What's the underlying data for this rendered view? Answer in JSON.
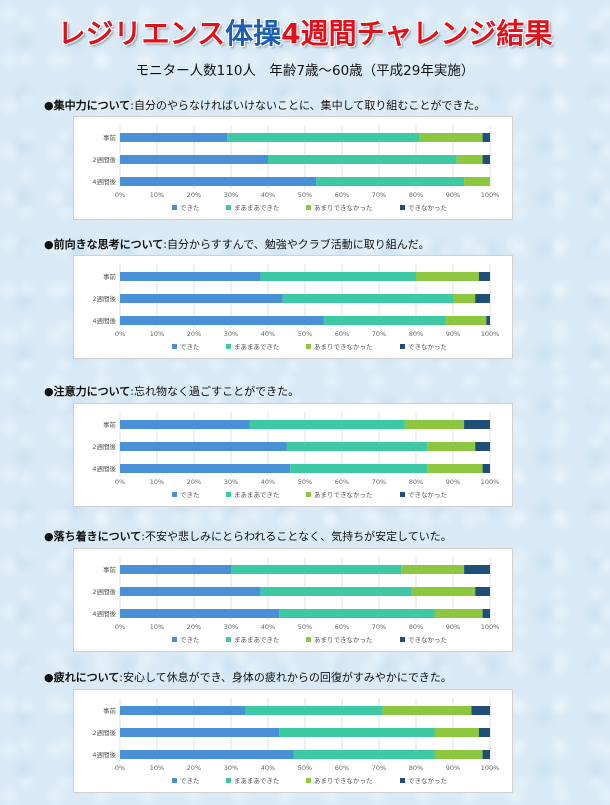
{
  "header": {
    "title_part1": "レジリエンス",
    "title_part2": "体操",
    "title_part3": "4週間チャレンジ結果",
    "subtitle": "モニター人数110人　年齢7歳～60歳（平成29年実施）"
  },
  "sections": [
    {
      "bullet": "●",
      "key": "集中力について",
      "desc": ":自分のやらなければいけないことに、集中して取り組むことができた。"
    },
    {
      "bullet": "●",
      "key": "前向きな思考について",
      "desc": ":自分からすすんで、勉強やクラブ活動に取り組んだ。"
    },
    {
      "bullet": "●",
      "key": "注意力について",
      "desc": ":忘れ物なく過ごすことができた。"
    },
    {
      "bullet": "●",
      "key": "落ち着きについて",
      "desc": ":不安や悲しみにとらわれることなく、気持ちが安定していた。"
    },
    {
      "bullet": "●",
      "key": "疲れについて",
      "desc": ":安心して休息ができ、身体の疲れからの回復がすみやかにできた。"
    }
  ],
  "chart_data": [
    {
      "type": "bar",
      "orientation": "horizontal",
      "stacked": true,
      "categories": [
        "事前",
        "2週間後",
        "4週間後"
      ],
      "series": [
        {
          "name": "できた",
          "values": [
            29,
            40,
            53
          ]
        },
        {
          "name": "まあまあできた",
          "values": [
            52,
            51,
            40
          ]
        },
        {
          "name": "あまりできなかった",
          "values": [
            17,
            7,
            7
          ]
        },
        {
          "name": "できなかった",
          "values": [
            2,
            2,
            0
          ]
        }
      ],
      "xlim": [
        0,
        100
      ],
      "ticks": [
        "0%",
        "10%",
        "20%",
        "30%",
        "40%",
        "50%",
        "60%",
        "70%",
        "80%",
        "90%",
        "100%"
      ],
      "legend": "bottom"
    },
    {
      "type": "bar",
      "orientation": "horizontal",
      "stacked": true,
      "categories": [
        "事前",
        "2週間後",
        "4週間後"
      ],
      "series": [
        {
          "name": "できた",
          "values": [
            38,
            44,
            55
          ]
        },
        {
          "name": "まあまあできた",
          "values": [
            42,
            46,
            33
          ]
        },
        {
          "name": "あまりできなかった",
          "values": [
            17,
            6,
            11
          ]
        },
        {
          "name": "できなかった",
          "values": [
            3,
            4,
            1
          ]
        }
      ],
      "xlim": [
        0,
        100
      ],
      "ticks": [
        "0%",
        "10%",
        "20%",
        "30%",
        "40%",
        "50%",
        "60%",
        "70%",
        "80%",
        "90%",
        "100%"
      ],
      "legend": "bottom"
    },
    {
      "type": "bar",
      "orientation": "horizontal",
      "stacked": true,
      "categories": [
        "事前",
        "2週間後",
        "4週間後"
      ],
      "series": [
        {
          "name": "できた",
          "values": [
            35,
            45,
            46
          ]
        },
        {
          "name": "まあまあできた",
          "values": [
            42,
            38,
            37
          ]
        },
        {
          "name": "あまりできなかった",
          "values": [
            16,
            13,
            15
          ]
        },
        {
          "name": "できなかった",
          "values": [
            7,
            4,
            2
          ]
        }
      ],
      "xlim": [
        0,
        100
      ],
      "ticks": [
        "0%",
        "10%",
        "20%",
        "30%",
        "40%",
        "50%",
        "60%",
        "70%",
        "80%",
        "90%",
        "100%"
      ],
      "legend": "bottom"
    },
    {
      "type": "bar",
      "orientation": "horizontal",
      "stacked": true,
      "categories": [
        "事前",
        "2週間後",
        "4週間後"
      ],
      "series": [
        {
          "name": "できた",
          "values": [
            30,
            38,
            43
          ]
        },
        {
          "name": "まあまあできた",
          "values": [
            46,
            41,
            42
          ]
        },
        {
          "name": "あまりできなかった",
          "values": [
            17,
            17,
            13
          ]
        },
        {
          "name": "できなかった",
          "values": [
            7,
            4,
            2
          ]
        }
      ],
      "xlim": [
        0,
        100
      ],
      "ticks": [
        "0%",
        "10%",
        "20%",
        "30%",
        "40%",
        "50%",
        "60%",
        "70%",
        "80%",
        "90%",
        "100%"
      ],
      "legend": "bottom"
    },
    {
      "type": "bar",
      "orientation": "horizontal",
      "stacked": true,
      "categories": [
        "事前",
        "2週間後",
        "4週間後"
      ],
      "series": [
        {
          "name": "できた",
          "values": [
            34,
            43,
            47
          ]
        },
        {
          "name": "まあまあできた",
          "values": [
            37,
            42,
            38
          ]
        },
        {
          "name": "あまりできなかった",
          "values": [
            24,
            12,
            13
          ]
        },
        {
          "name": "できなかった",
          "values": [
            5,
            3,
            2
          ]
        }
      ],
      "xlim": [
        0,
        100
      ],
      "ticks": [
        "0%",
        "10%",
        "20%",
        "30%",
        "40%",
        "50%",
        "60%",
        "70%",
        "80%",
        "90%",
        "100%"
      ],
      "legend": "bottom"
    }
  ],
  "colors": {
    "series": [
      "#4a90d6",
      "#3cc9a4",
      "#8dc63f",
      "#1f4e79"
    ],
    "title_red": "#e3101a",
    "title_blue": "#1a5fb4"
  }
}
